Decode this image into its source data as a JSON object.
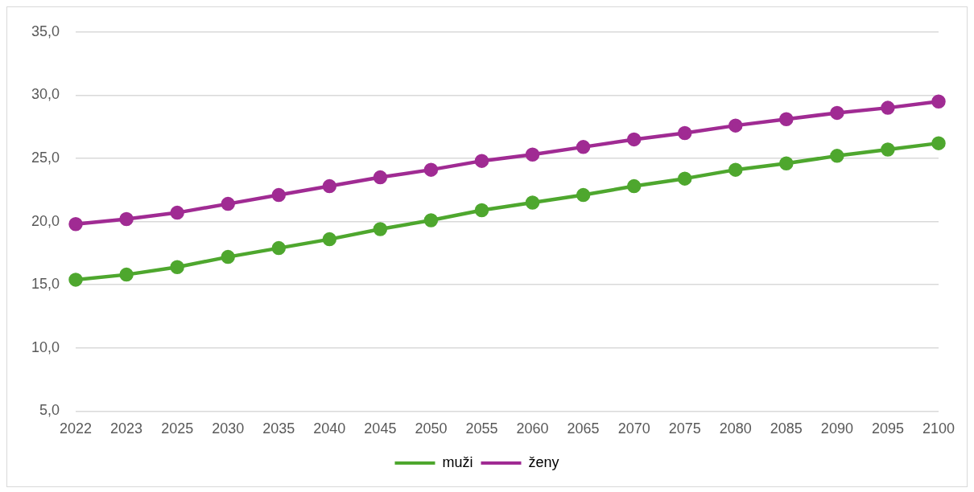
{
  "chart_data": {
    "type": "line",
    "categories": [
      "2022",
      "2023",
      "2025",
      "2030",
      "2035",
      "2040",
      "2045",
      "2050",
      "2055",
      "2060",
      "2065",
      "2070",
      "2075",
      "2080",
      "2085",
      "2090",
      "2095",
      "2100"
    ],
    "series": [
      {
        "name": "muži",
        "color": "#4ea72e",
        "values": [
          15.4,
          15.8,
          16.4,
          17.2,
          17.9,
          18.6,
          19.4,
          20.1,
          20.9,
          21.5,
          22.1,
          22.8,
          23.4,
          24.1,
          24.6,
          25.2,
          25.7,
          26.2
        ]
      },
      {
        "name": "ženy",
        "color": "#a02b93",
        "values": [
          19.8,
          20.2,
          20.7,
          21.4,
          22.1,
          22.8,
          23.5,
          24.1,
          24.8,
          25.3,
          25.9,
          26.5,
          27.0,
          27.6,
          28.1,
          28.6,
          29.0,
          29.5
        ]
      }
    ],
    "ylim": [
      5,
      35
    ],
    "yticks": [
      {
        "value": 5,
        "label": "5,0"
      },
      {
        "value": 10,
        "label": "10,0"
      },
      {
        "value": 15,
        "label": "15,0"
      },
      {
        "value": 20,
        "label": "20,0"
      },
      {
        "value": 25,
        "label": "25,0"
      },
      {
        "value": 30,
        "label": "30,0"
      },
      {
        "value": 35,
        "label": "35,0"
      }
    ],
    "grid": "y",
    "legend": "bottom",
    "marker": "circle",
    "line_style": "solid"
  }
}
